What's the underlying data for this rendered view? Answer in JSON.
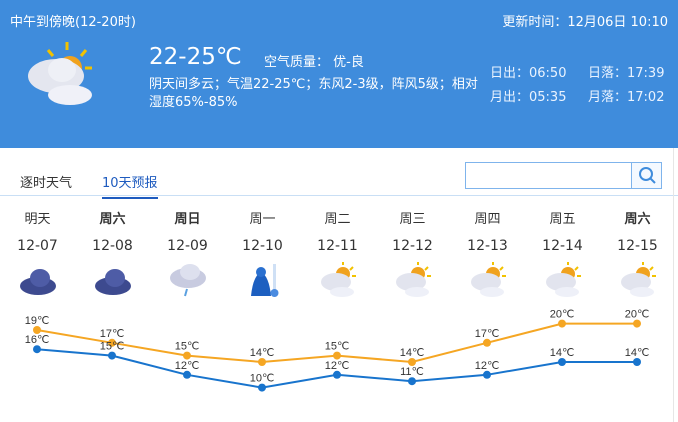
{
  "header": {
    "period": "中午到傍晚(12-20时)",
    "update_time": "更新时间：12月06日 10:10",
    "temperature": "22-25℃",
    "air_quality": "空气质量： 优-良",
    "description": "阴天间多云；气温22-25℃；东风2-3级，阵风5级；相对湿度65%-85%",
    "sunrise": "日出：06:50",
    "sunset": "日落：17:39",
    "moonrise": "月出：05:35",
    "moonset": "月落：17:02",
    "icon": "partly-cloudy-icon"
  },
  "tabs": [
    {
      "label": "逐时天气",
      "active": false
    },
    {
      "label": "10天预报",
      "active": true
    }
  ],
  "search": {
    "placeholder": "",
    "icon": "search-icon"
  },
  "days": [
    {
      "weekday": "明天",
      "date": "12-07",
      "bold": false,
      "icon": "overcast"
    },
    {
      "weekday": "周六",
      "date": "12-08",
      "bold": true,
      "icon": "overcast"
    },
    {
      "weekday": "周日",
      "date": "12-09",
      "bold": true,
      "icon": "light-rain"
    },
    {
      "weekday": "周一",
      "date": "12-10",
      "bold": false,
      "icon": "cold"
    },
    {
      "weekday": "周二",
      "date": "12-11",
      "bold": false,
      "icon": "partly-cloudy"
    },
    {
      "weekday": "周三",
      "date": "12-12",
      "bold": false,
      "icon": "partly-cloudy"
    },
    {
      "weekday": "周四",
      "date": "12-13",
      "bold": false,
      "icon": "partly-cloudy"
    },
    {
      "weekday": "周五",
      "date": "12-14",
      "bold": false,
      "icon": "partly-cloudy"
    },
    {
      "weekday": "周六",
      "date": "12-15",
      "bold": true,
      "icon": "partly-cloudy"
    }
  ],
  "chart_data": {
    "type": "line",
    "categories": [
      "12-07",
      "12-08",
      "12-09",
      "12-10",
      "12-11",
      "12-12",
      "12-13",
      "12-14",
      "12-15"
    ],
    "series": [
      {
        "values": [
          19,
          17,
          15,
          14,
          15,
          14,
          17,
          20,
          20
        ],
        "color": "#f5a623"
      },
      {
        "values": [
          16,
          15,
          12,
          10,
          12,
          11,
          12,
          14,
          14
        ],
        "color": "#1874cd"
      }
    ],
    "unit": "℃"
  }
}
